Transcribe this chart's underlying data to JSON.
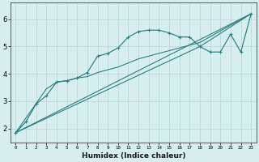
{
  "xlabel": "Humidex (Indice chaleur)",
  "xlim": [
    -0.5,
    23.5
  ],
  "ylim": [
    1.5,
    6.6
  ],
  "xticks": [
    0,
    1,
    2,
    3,
    4,
    5,
    6,
    7,
    8,
    9,
    10,
    11,
    12,
    13,
    14,
    15,
    16,
    17,
    18,
    19,
    20,
    21,
    22,
    23
  ],
  "yticks": [
    2,
    3,
    4,
    5,
    6
  ],
  "bg_color": "#d6eeee",
  "grid_color": "#c0dcdc",
  "line_color": "#2a7f7f",
  "curve_marked_x": [
    0,
    1,
    2,
    3,
    4,
    5,
    6,
    7,
    8,
    9,
    10,
    11,
    12,
    13,
    14,
    15,
    16,
    17,
    18,
    19,
    20,
    21,
    22,
    23
  ],
  "curve_marked_y": [
    1.85,
    2.25,
    2.9,
    3.2,
    3.7,
    3.75,
    3.85,
    4.05,
    4.65,
    4.75,
    4.95,
    5.35,
    5.55,
    5.6,
    5.6,
    5.5,
    5.35,
    5.35,
    5.0,
    4.8,
    4.8,
    5.45,
    4.8,
    6.2
  ],
  "curve_smooth_x": [
    0,
    3,
    4,
    5,
    6,
    7,
    8,
    9,
    10,
    11,
    12,
    13,
    14,
    15,
    16,
    17,
    18,
    23
  ],
  "curve_smooth_y": [
    1.85,
    3.45,
    3.7,
    3.75,
    3.85,
    3.9,
    4.05,
    4.15,
    4.25,
    4.4,
    4.55,
    4.65,
    4.75,
    4.85,
    4.95,
    5.05,
    5.15,
    6.2
  ],
  "line1_x": [
    0,
    23
  ],
  "line1_y": [
    1.85,
    6.2
  ],
  "line2_x": [
    0,
    18,
    23
  ],
  "line2_y": [
    1.85,
    5.0,
    6.2
  ]
}
